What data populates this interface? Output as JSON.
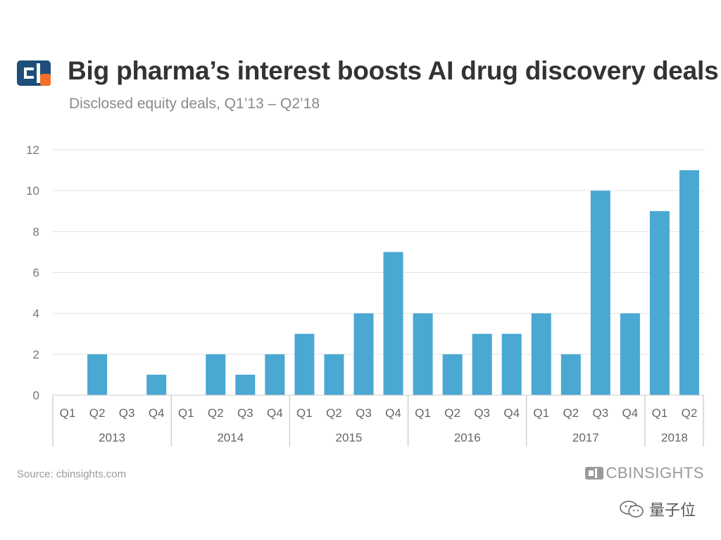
{
  "header": {
    "title": "Big pharma’s interest boosts AI drug discovery deals",
    "subtitle": "Disclosed equity deals, Q1’13 – Q2’18"
  },
  "footer": {
    "source": "Source: cbinsights.com",
    "brand": "CBINSIGHTS",
    "watermark": "量子位"
  },
  "colors": {
    "bar": "#4aa8d3",
    "title": "#333333",
    "logo_dark": "#1e4e79",
    "logo_accent": "#f36f2a"
  },
  "chart_data": {
    "type": "bar",
    "title": "Big pharma’s interest boosts AI drug discovery deals",
    "subtitle": "Disclosed equity deals, Q1’13 – Q2’18",
    "categories": [
      "Q1",
      "Q2",
      "Q3",
      "Q4",
      "Q1",
      "Q2",
      "Q3",
      "Q4",
      "Q1",
      "Q2",
      "Q3",
      "Q4",
      "Q1",
      "Q2",
      "Q3",
      "Q4",
      "Q1",
      "Q2",
      "Q3",
      "Q4",
      "Q1",
      "Q2"
    ],
    "groups": [
      {
        "label": "2013",
        "count": 4
      },
      {
        "label": "2014",
        "count": 4
      },
      {
        "label": "2015",
        "count": 4
      },
      {
        "label": "2016",
        "count": 4
      },
      {
        "label": "2017",
        "count": 4
      },
      {
        "label": "2018",
        "count": 2
      }
    ],
    "values": [
      0,
      2,
      0,
      1,
      0,
      2,
      1,
      2,
      3,
      2,
      4,
      7,
      4,
      2,
      3,
      3,
      4,
      2,
      10,
      4,
      9,
      11
    ],
    "ylim": [
      0,
      12
    ],
    "yticks": [
      0,
      2,
      4,
      6,
      8,
      10,
      12
    ],
    "grid": true,
    "legend": "none"
  }
}
